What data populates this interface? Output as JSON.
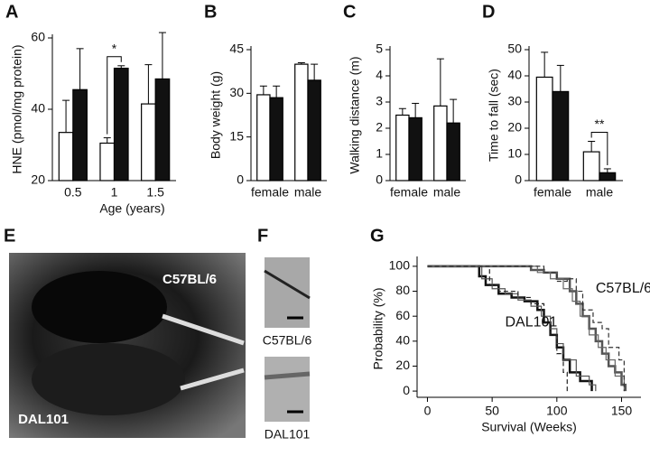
{
  "chart_data": [
    {
      "type": "bar",
      "panel": "A",
      "ylabel": "HNE (pmol/mg protein)",
      "xlabel": "Age (years)",
      "categories": [
        "0.5",
        "1",
        "1.5"
      ],
      "series": [
        {
          "color": "#ffffff",
          "values": [
            33.5,
            30.5,
            41.5
          ],
          "errors": [
            9,
            1.5,
            11
          ]
        },
        {
          "color": "#111111",
          "values": [
            45.5,
            51.5,
            48.5
          ],
          "errors": [
            11.5,
            0.7,
            13
          ]
        }
      ],
      "ylim": [
        20,
        60
      ],
      "yticks": [
        20,
        40,
        60
      ],
      "significance": [
        {
          "label": "*",
          "category": "1"
        }
      ]
    },
    {
      "type": "bar",
      "panel": "B",
      "ylabel": "Body weight (g)",
      "categories": [
        "female",
        "male"
      ],
      "series": [
        {
          "color": "#ffffff",
          "values": [
            29.5,
            40
          ],
          "errors": [
            3,
            0.5
          ]
        },
        {
          "color": "#111111",
          "values": [
            28.5,
            34.5
          ],
          "errors": [
            4,
            5.5
          ]
        }
      ],
      "ylim": [
        0,
        45
      ],
      "yticks": [
        0,
        15,
        30,
        45
      ]
    },
    {
      "type": "bar",
      "panel": "C",
      "ylabel": "Walking distance (m)",
      "categories": [
        "female",
        "male"
      ],
      "series": [
        {
          "color": "#ffffff",
          "values": [
            2.5,
            2.85
          ],
          "errors": [
            0.25,
            1.8
          ]
        },
        {
          "color": "#111111",
          "values": [
            2.4,
            2.2
          ],
          "errors": [
            0.55,
            0.9
          ]
        }
      ],
      "ylim": [
        0,
        5
      ],
      "yticks": [
        0,
        1,
        2,
        3,
        4,
        5
      ]
    },
    {
      "type": "bar",
      "panel": "D",
      "ylabel": "Time to fall (sec)",
      "categories": [
        "female",
        "male"
      ],
      "series": [
        {
          "color": "#ffffff",
          "values": [
            39.5,
            11
          ],
          "errors": [
            9.5,
            4
          ]
        },
        {
          "color": "#111111",
          "values": [
            34,
            3
          ],
          "errors": [
            10,
            1.5
          ]
        }
      ],
      "ylim": [
        0,
        50
      ],
      "yticks": [
        0,
        10,
        20,
        30,
        40,
        50
      ],
      "significance": [
        {
          "label": "**",
          "category": "male"
        }
      ]
    },
    {
      "type": "line",
      "step": true,
      "panel": "G",
      "xlabel": "Survival (Weeks)",
      "ylabel": "Probability (%)",
      "xlim": [
        -8,
        165
      ],
      "xticks": [
        0,
        50,
        100,
        150
      ],
      "ylim": [
        -5,
        105
      ],
      "yticks": [
        0,
        20,
        40,
        60,
        80,
        100
      ],
      "annotations": [
        "C57BL/6",
        "DAL101"
      ],
      "series": [
        {
          "color": "#111111",
          "width": 2.5,
          "dash": false,
          "x": [
            0,
            35,
            40,
            45,
            55,
            65,
            75,
            85,
            90,
            95,
            100,
            105,
            110,
            118,
            127
          ],
          "values": [
            100,
            100,
            92,
            85,
            78,
            75,
            72,
            65,
            55,
            45,
            35,
            25,
            15,
            8,
            0
          ]
        },
        {
          "color": "#555555",
          "width": 1.2,
          "dash": false,
          "x": [
            0,
            38,
            42,
            50,
            60,
            70,
            80,
            88,
            95,
            100,
            105,
            115,
            125,
            130
          ],
          "values": [
            100,
            100,
            90,
            82,
            78,
            73,
            68,
            60,
            50,
            38,
            25,
            12,
            5,
            0
          ]
        },
        {
          "color": "#222222",
          "width": 1.2,
          "dash": true,
          "x": [
            0,
            40,
            48,
            55,
            70,
            80,
            90,
            95,
            100,
            105,
            108
          ],
          "values": [
            100,
            100,
            85,
            80,
            75,
            70,
            55,
            45,
            30,
            15,
            0
          ]
        },
        {
          "color": "#555555",
          "width": 2.5,
          "dash": false,
          "x": [
            0,
            70,
            80,
            90,
            100,
            110,
            115,
            120,
            125,
            130,
            135,
            140,
            145,
            150,
            153
          ],
          "values": [
            100,
            100,
            97,
            95,
            90,
            80,
            70,
            60,
            50,
            40,
            30,
            20,
            15,
            5,
            0
          ]
        },
        {
          "color": "#666666",
          "width": 1.2,
          "dash": false,
          "x": [
            0,
            75,
            85,
            95,
            105,
            112,
            118,
            125,
            132,
            138,
            145,
            152
          ],
          "values": [
            100,
            100,
            95,
            90,
            82,
            72,
            60,
            45,
            35,
            25,
            12,
            0
          ]
        },
        {
          "color": "#333333",
          "width": 1.2,
          "dash": true,
          "x": [
            0,
            80,
            90,
            100,
            108,
            115,
            120,
            128,
            135,
            140,
            148,
            152
          ],
          "values": [
            100,
            100,
            95,
            88,
            90,
            80,
            65,
            55,
            50,
            35,
            25,
            0
          ]
        }
      ]
    }
  ],
  "photo": {
    "panel": "E",
    "labels": [
      "C57BL/6",
      "DAL101"
    ]
  },
  "hair": {
    "panel": "F",
    "labels": [
      "C57BL/6",
      "DAL101"
    ]
  }
}
